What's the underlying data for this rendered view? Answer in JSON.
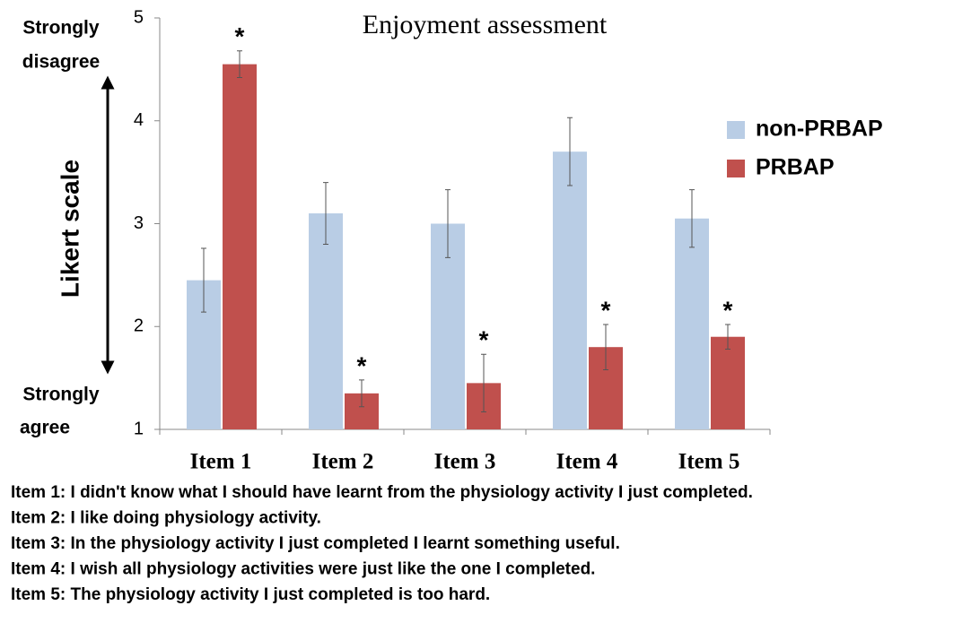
{
  "chart_data": {
    "type": "bar",
    "title": "Enjoyment assessment",
    "y_label": "Likert scale",
    "y_top_label": [
      "Strongly",
      "disagree"
    ],
    "y_bottom_label": [
      "Strongly",
      "agree"
    ],
    "categories": [
      "Item 1",
      "Item 2",
      "Item 3",
      "Item 4",
      "Item 5"
    ],
    "series": [
      {
        "name": "non-PRBAP",
        "color": "#b9cde5",
        "values": [
          2.45,
          3.1,
          3.0,
          3.7,
          3.05
        ],
        "errors": [
          0.31,
          0.3,
          0.33,
          0.33,
          0.28
        ]
      },
      {
        "name": "PRBAP",
        "color": "#c0504d",
        "values": [
          4.55,
          1.35,
          1.45,
          1.8,
          1.9
        ],
        "errors": [
          0.13,
          0.13,
          0.28,
          0.22,
          0.12
        ],
        "annotations": [
          "*",
          "*",
          "*",
          "*",
          "*"
        ]
      }
    ],
    "ylim": [
      1,
      5
    ],
    "yticks": [
      1,
      2,
      3,
      4,
      5
    ],
    "notes": [
      "Item 1: I didn't know what I should have learnt from the physiology activity I just completed.",
      "Item 2: I like doing physiology activity.",
      "Item 3: In the physiology activity I just completed I learnt something useful.",
      "Item 4: I wish all physiology activities were just like the one I completed.",
      "Item 5: The physiology activity I just completed is too hard."
    ]
  }
}
